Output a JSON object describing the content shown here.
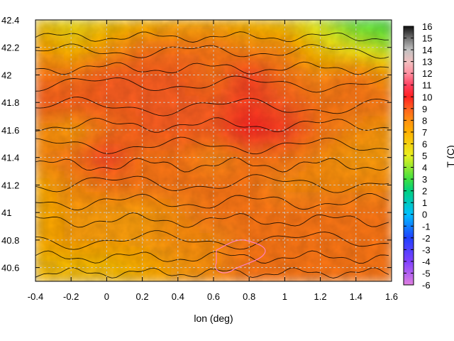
{
  "chart_data": {
    "type": "heatmap",
    "title": "",
    "xlabel": "lon (deg)",
    "ylabel": "",
    "colorbar_label": "T (C)",
    "xlim": [
      -0.4,
      1.6
    ],
    "ylim": [
      40.5,
      42.4
    ],
    "grid": true,
    "x_ticks": [
      -0.4,
      -0.2,
      0,
      0.2,
      0.4,
      0.6,
      0.8,
      1,
      1.2,
      1.4,
      1.6
    ],
    "x_tick_labels": [
      "-0.4",
      "-0.2",
      "0",
      "0.2",
      "0.4",
      "0.6",
      "0.8",
      "1",
      "1.2",
      "1.4",
      "1.6"
    ],
    "y_ticks": [
      40.6,
      40.8,
      41,
      41.2,
      41.4,
      41.6,
      41.8,
      42,
      42.2,
      42.4
    ],
    "y_tick_labels": [
      "40.6",
      "40.8",
      "41",
      "41.2",
      "41.4",
      "41.6",
      "41.8",
      "42",
      "42.2",
      "42.4"
    ],
    "colorbar_range": [
      -6,
      16
    ],
    "colorbar_ticks": [
      16,
      15,
      14,
      13,
      12,
      11,
      10,
      9,
      8,
      7,
      6,
      5,
      4,
      3,
      2,
      1,
      0,
      -1,
      -2,
      -3,
      -4,
      -5,
      -6
    ],
    "colorbar_tick_labels": [
      "16",
      "15",
      "14",
      "13",
      "12",
      "11",
      "10",
      "9",
      "8",
      "7",
      "6",
      "5",
      "4",
      "3",
      "2",
      "1",
      "0",
      "-1",
      "-2",
      "-3",
      "-4",
      "-5",
      "-6"
    ],
    "colormap_stops": [
      {
        "value": -6,
        "color": "#e080e0"
      },
      {
        "value": -4,
        "color": "#8040ff"
      },
      {
        "value": -2,
        "color": "#2040ff"
      },
      {
        "value": 0,
        "color": "#00c0ff"
      },
      {
        "value": 2,
        "color": "#00d080"
      },
      {
        "value": 3,
        "color": "#40e040"
      },
      {
        "value": 5,
        "color": "#e8f020"
      },
      {
        "value": 7,
        "color": "#ffb000"
      },
      {
        "value": 8,
        "color": "#ff9010"
      },
      {
        "value": 9,
        "color": "#ff6020"
      },
      {
        "value": 10,
        "color": "#ff2020"
      },
      {
        "value": 11,
        "color": "#ff4060"
      },
      {
        "value": 12,
        "color": "#ff90a0"
      },
      {
        "value": 13,
        "color": "#f0c0c0"
      },
      {
        "value": 14,
        "color": "#c0c0c0"
      },
      {
        "value": 15,
        "color": "#707070"
      },
      {
        "value": 16,
        "color": "#101010"
      }
    ],
    "temperature_field": {
      "lon": [
        -0.4,
        -0.2,
        0,
        0.2,
        0.4,
        0.6,
        0.8,
        1,
        1.2,
        1.4,
        1.6
      ],
      "lat": [
        42.4,
        42.2,
        42.0,
        41.8,
        41.6,
        41.4,
        41.2,
        41.0,
        40.8,
        40.6
      ],
      "values": [
        [
          6,
          5.5,
          6,
          6.5,
          7,
          7,
          6.5,
          6,
          4.5,
          3,
          3
        ],
        [
          7.5,
          6.5,
          7.5,
          8.5,
          8.5,
          8.5,
          8,
          8,
          6,
          5,
          4
        ],
        [
          8.5,
          8.5,
          9,
          9,
          9,
          8.5,
          9.5,
          8.5,
          8,
          8.5,
          7.5
        ],
        [
          9,
          9,
          9,
          9,
          9,
          9,
          9.5,
          9,
          8.5,
          8.5,
          8.5
        ],
        [
          8,
          7.5,
          8.5,
          9,
          9,
          9,
          10,
          9.5,
          8.5,
          8,
          7.5
        ],
        [
          8,
          8.5,
          9.5,
          8.5,
          8.5,
          8,
          8.5,
          8.5,
          8,
          7.5,
          7.5
        ],
        [
          7,
          8,
          8.5,
          8.5,
          8.5,
          8.5,
          8.5,
          8,
          8,
          8,
          8
        ],
        [
          7,
          7.5,
          7.5,
          7.5,
          8,
          8.5,
          8.5,
          8.5,
          8.5,
          8.5,
          8.5
        ],
        [
          7,
          7.5,
          7.5,
          7.5,
          8,
          8,
          8.5,
          8.5,
          8.5,
          8.5,
          8.5
        ],
        [
          6.5,
          6.5,
          6.5,
          7,
          7.5,
          8,
          8.5,
          8.5,
          8.5,
          8.5,
          8.5
        ]
      ]
    }
  }
}
